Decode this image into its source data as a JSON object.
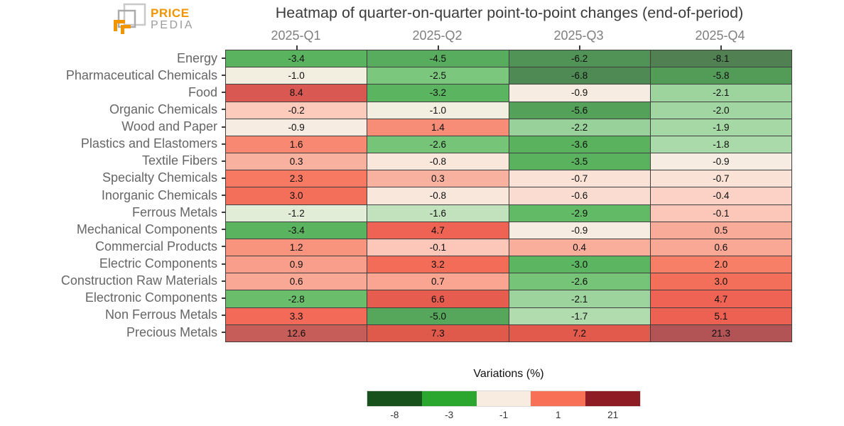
{
  "header": {
    "logo": {
      "line1": "PRICE",
      "line2": "PEDIA"
    }
  },
  "colors": {
    "brand_orange": "#f29400",
    "grid_line": "#3f3f3f",
    "column_header_text": "#7f7f7f",
    "row_label_text": "#666666",
    "title_text": "#3c3c3c"
  },
  "chart_data": {
    "type": "heatmap",
    "title": "Heatmap of quarter-on-quarter point-to-point changes (end-of-period)",
    "columns": [
      "2025-Q1",
      "2025-Q2",
      "2025-Q3",
      "2025-Q4"
    ],
    "rows": [
      "Energy",
      "Pharmaceutical Chemicals",
      "Food",
      "Organic Chemicals",
      "Wood and Paper",
      "Plastics and Elastomers",
      "Textile Fibers",
      "Specialty Chemicals",
      "Inorganic Chemicals",
      "Ferrous Metals",
      "Mechanical Components",
      "Commercial Products",
      "Electric Components",
      "Construction Raw Materials",
      "Electronic Components",
      "Non Ferrous Metals",
      "Precious Metals"
    ],
    "values": [
      [
        -3.4,
        -4.5,
        -6.2,
        -8.1
      ],
      [
        -1.0,
        -2.5,
        -6.8,
        -5.8
      ],
      [
        8.4,
        -3.2,
        -0.9,
        -2.1
      ],
      [
        -0.2,
        -1.0,
        -5.6,
        -2.0
      ],
      [
        -0.9,
        1.4,
        -2.2,
        -1.9
      ],
      [
        1.6,
        -2.6,
        -3.6,
        -1.8
      ],
      [
        0.3,
        -0.8,
        -3.5,
        -0.9
      ],
      [
        2.3,
        0.3,
        -0.7,
        -0.7
      ],
      [
        3.0,
        -0.8,
        -0.6,
        -0.4
      ],
      [
        -1.2,
        -1.6,
        -2.9,
        -0.1
      ],
      [
        -3.4,
        4.7,
        -0.9,
        0.5
      ],
      [
        1.2,
        -0.1,
        0.4,
        0.6
      ],
      [
        0.9,
        3.2,
        -3.0,
        2.0
      ],
      [
        0.6,
        0.7,
        -2.6,
        3.0
      ],
      [
        -2.8,
        6.6,
        -2.1,
        4.7
      ],
      [
        3.3,
        -5.0,
        -1.7,
        5.1
      ],
      [
        12.6,
        7.3,
        7.2,
        21.3
      ]
    ],
    "legend": {
      "title": "Variations (%)",
      "tick_labels": [
        "-8",
        "-3",
        "-1",
        "1",
        "21"
      ],
      "segment_colors": [
        "#17511c",
        "#2ba62e",
        "#f8ece0",
        "#f87157",
        "#8d1c24"
      ]
    },
    "colormap_stops": [
      [
        -9.0,
        "#527b52"
      ],
      [
        -6.5,
        "#4f8c54"
      ],
      [
        -5.6,
        "#54a159"
      ],
      [
        -4.5,
        "#58ac5d"
      ],
      [
        -3.4,
        "#5ab35f"
      ],
      [
        -3.0,
        "#5cb661"
      ],
      [
        -2.8,
        "#69bd6b"
      ],
      [
        -2.5,
        "#7cc77e"
      ],
      [
        -2.2,
        "#98d199"
      ],
      [
        -1.9,
        "#a6d8a6"
      ],
      [
        -1.7,
        "#b0dcae"
      ],
      [
        -1.55,
        "#c9e5c4"
      ],
      [
        -1.2,
        "#e1edd6"
      ],
      [
        -0.95,
        "#f6eee3"
      ],
      [
        -0.8,
        "#f9e7dc"
      ],
      [
        -0.6,
        "#fadcd1"
      ],
      [
        -0.4,
        "#fbd2c5"
      ],
      [
        -0.1,
        "#fcc7b8"
      ],
      [
        0.3,
        "#f9b19f"
      ],
      [
        0.7,
        "#f9a592"
      ],
      [
        1.0,
        "#f89b86"
      ],
      [
        1.5,
        "#f88a73"
      ],
      [
        2.2,
        "#f77a63"
      ],
      [
        3.2,
        "#f36c58"
      ],
      [
        4.9,
        "#ed6252"
      ],
      [
        6.6,
        "#e65c4e"
      ],
      [
        7.3,
        "#e05a4c"
      ],
      [
        8.4,
        "#d95952"
      ],
      [
        12.6,
        "#c75d58"
      ],
      [
        21.3,
        "#b25356"
      ]
    ]
  }
}
